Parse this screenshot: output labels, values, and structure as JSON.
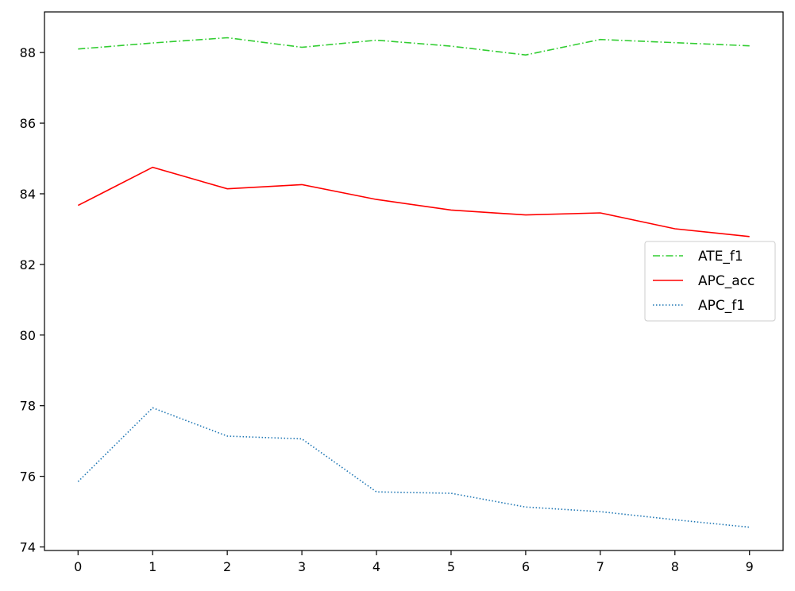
{
  "chart_data": {
    "type": "line",
    "x": [
      0,
      1,
      2,
      3,
      4,
      5,
      6,
      7,
      8,
      9
    ],
    "xlim": [
      -0.45,
      9.45
    ],
    "ylim": [
      73.9,
      89.15
    ],
    "xticks": [
      0,
      1,
      2,
      3,
      4,
      5,
      6,
      7,
      8,
      9
    ],
    "yticks": [
      74,
      76,
      78,
      80,
      82,
      84,
      86,
      88
    ],
    "grid": false,
    "legend_position": "center-right",
    "series": [
      {
        "name": "ATE_f1",
        "color": "#32cd32",
        "style": "dashdot",
        "values": [
          88.1,
          88.27,
          88.42,
          88.15,
          88.35,
          88.18,
          87.93,
          88.37,
          88.28,
          88.19
        ]
      },
      {
        "name": "APC_acc",
        "color": "#ff0000",
        "style": "solid",
        "values": [
          83.67,
          84.75,
          84.14,
          84.26,
          83.84,
          83.54,
          83.4,
          83.46,
          83.01,
          82.79
        ]
      },
      {
        "name": "APC_f1",
        "color": "#1f77b4",
        "style": "dotted",
        "values": [
          75.85,
          77.94,
          77.14,
          77.06,
          75.56,
          75.52,
          75.13,
          75.0,
          74.77,
          74.56
        ]
      }
    ]
  }
}
